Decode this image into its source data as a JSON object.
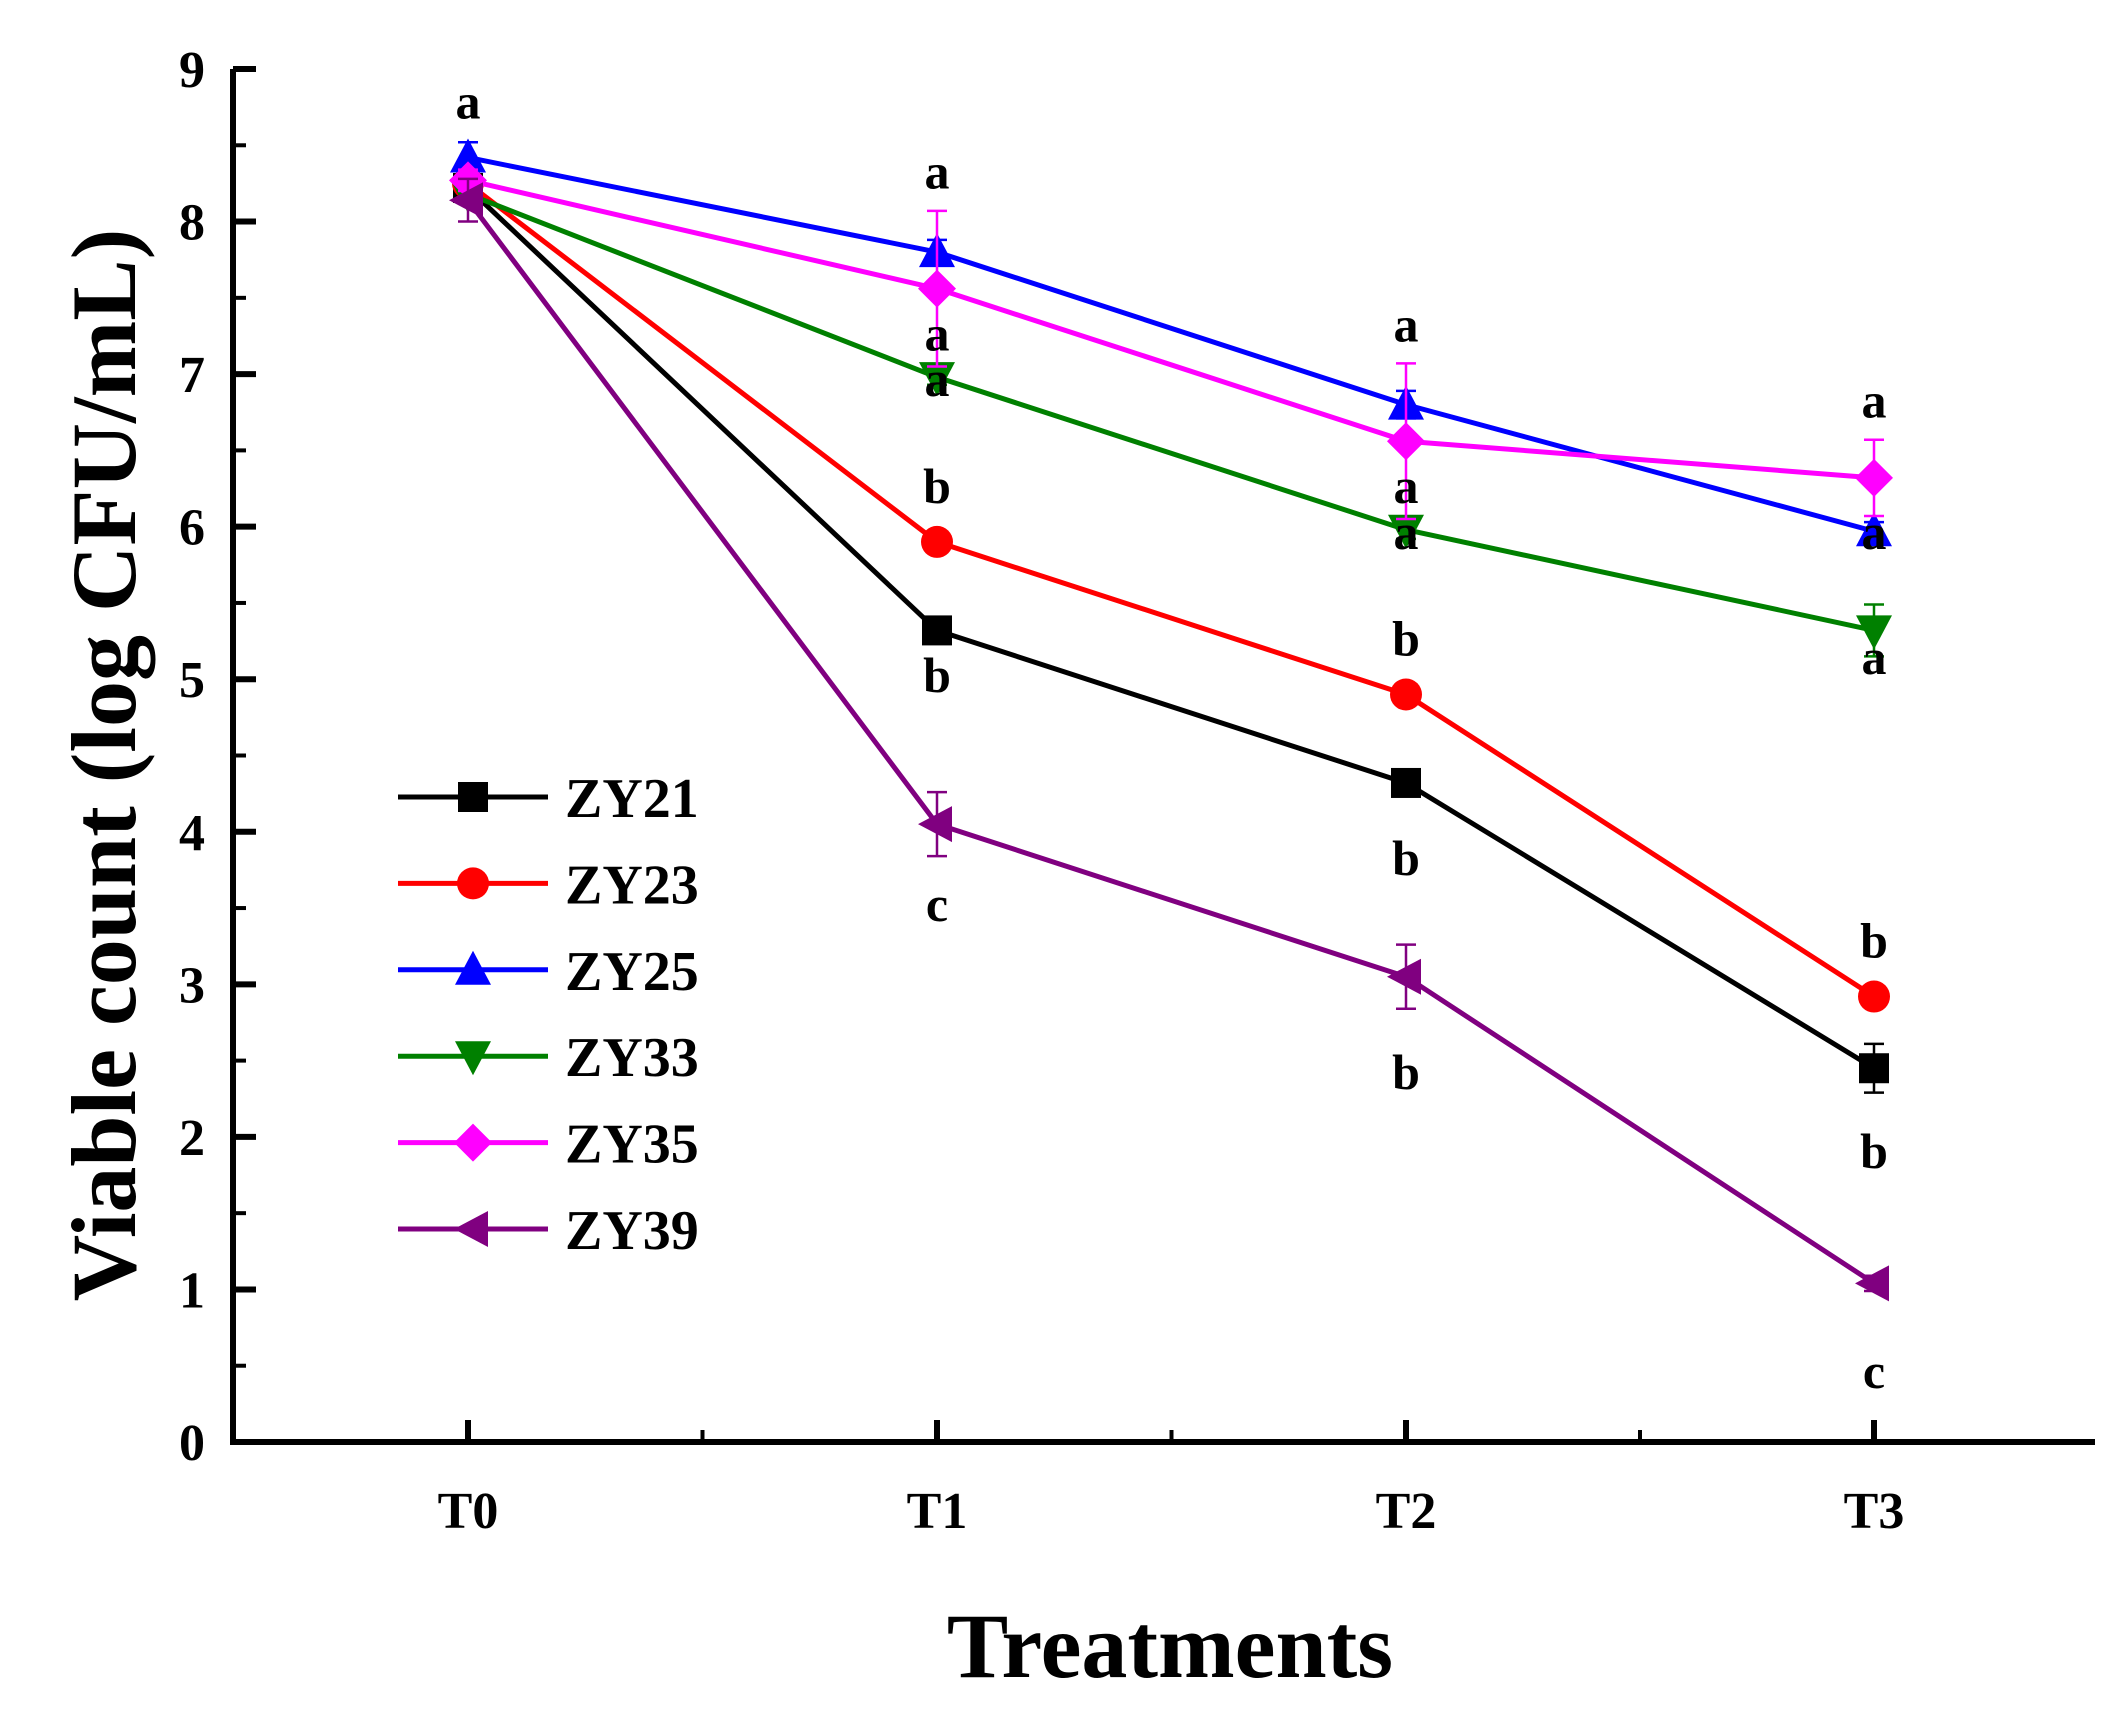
{
  "chart_data": {
    "type": "line",
    "title": "",
    "xlabel": "Treatments",
    "ylabel": "Viable count (log CFU/mL)",
    "categories": [
      "T0",
      "T1",
      "T2",
      "T3"
    ],
    "ylim": [
      0,
      9
    ],
    "yticks": [
      0,
      1,
      2,
      3,
      4,
      5,
      6,
      7,
      8,
      9
    ],
    "legend_position": "lower-left",
    "grid": false,
    "series": [
      {
        "name": "ZY21",
        "color": "#000000",
        "marker": "square",
        "values": [
          8.22,
          5.32,
          4.32,
          2.45
        ],
        "errors": [
          0.06,
          0.06,
          0.05,
          0.16
        ]
      },
      {
        "name": "ZY23",
        "color": "#ff0000",
        "marker": "circle",
        "values": [
          8.25,
          5.9,
          4.9,
          2.92
        ],
        "errors": [
          0.06,
          0.06,
          0.06,
          0.06
        ]
      },
      {
        "name": "ZY25",
        "color": "#0000ff",
        "marker": "triangle-up",
        "values": [
          8.42,
          7.8,
          6.8,
          5.97
        ],
        "errors": [
          0.1,
          0.08,
          0.09,
          0.06
        ]
      },
      {
        "name": "ZY33",
        "color": "#008000",
        "marker": "triangle-down",
        "values": [
          8.18,
          6.98,
          5.98,
          5.32
        ],
        "errors": [
          0.06,
          0.05,
          0.06,
          0.17
        ]
      },
      {
        "name": "ZY35",
        "color": "#ff00ff",
        "marker": "diamond",
        "values": [
          8.27,
          7.56,
          6.56,
          6.32
        ],
        "errors": [
          0.07,
          0.51,
          0.51,
          0.25
        ]
      },
      {
        "name": "ZY39",
        "color": "#800080",
        "marker": "triangle-left",
        "values": [
          8.14,
          4.05,
          3.05,
          1.04
        ],
        "errors": [
          0.14,
          0.21,
          0.21,
          0.05
        ]
      }
    ],
    "annotations": [
      {
        "category": "T0",
        "y": 8.78,
        "text": "a"
      },
      {
        "category": "T1",
        "y": 8.32,
        "text": "a"
      },
      {
        "category": "T1",
        "y": 7.26,
        "text": "a"
      },
      {
        "category": "T1",
        "y": 6.96,
        "text": "a"
      },
      {
        "category": "T1",
        "y": 6.26,
        "text": "b"
      },
      {
        "category": "T1",
        "y": 5.02,
        "text": "b"
      },
      {
        "category": "T1",
        "y": 3.52,
        "text": "c"
      },
      {
        "category": "T2",
        "y": 7.32,
        "text": "a"
      },
      {
        "category": "T2",
        "y": 6.26,
        "text": "a"
      },
      {
        "category": "T2",
        "y": 5.96,
        "text": "a"
      },
      {
        "category": "T2",
        "y": 5.26,
        "text": "b"
      },
      {
        "category": "T2",
        "y": 3.82,
        "text": "b"
      },
      {
        "category": "T2",
        "y": 2.42,
        "text": "b"
      },
      {
        "category": "T3",
        "y": 6.82,
        "text": "a"
      },
      {
        "category": "T3",
        "y": 5.96,
        "text": "a"
      },
      {
        "category": "T3",
        "y": 5.14,
        "text": "a"
      },
      {
        "category": "T3",
        "y": 3.28,
        "text": "b"
      },
      {
        "category": "T3",
        "y": 1.9,
        "text": "b"
      },
      {
        "category": "T3",
        "y": 0.46,
        "text": "c"
      }
    ]
  }
}
